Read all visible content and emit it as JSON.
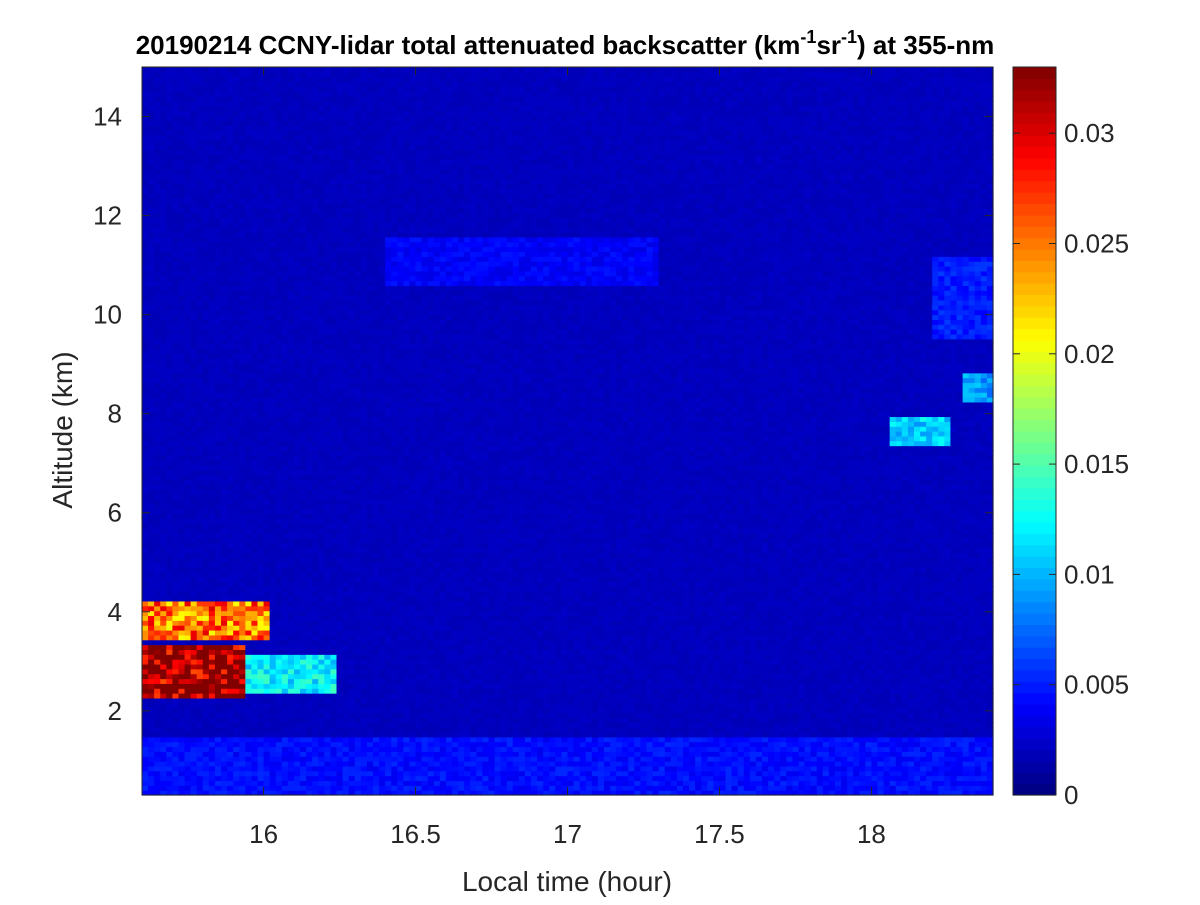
{
  "chart_data": {
    "type": "heatmap",
    "title": {
      "prefix": "20190214 CCNY-lidar total attenuated backscatter (km",
      "sup1": "-1",
      "mid": "sr",
      "sup2": "-1",
      "suffix": ") at 355-nm"
    },
    "xlabel": "Local time (hour)",
    "ylabel": "Altitude (km)",
    "xlim": [
      15.6,
      18.4
    ],
    "ylim": [
      0.3,
      15
    ],
    "xticks": [
      16,
      16.5,
      17,
      17.5,
      18
    ],
    "xtick_labels": [
      "16",
      "16.5",
      "17",
      "17.5",
      "18"
    ],
    "yticks": [
      2,
      4,
      6,
      8,
      10,
      12,
      14
    ],
    "ytick_labels": [
      "2",
      "4",
      "6",
      "8",
      "10",
      "12",
      "14"
    ],
    "colorbar": {
      "colormap": "jet",
      "range": [
        0,
        0.033
      ],
      "ticks": [
        0,
        0.005,
        0.01,
        0.015,
        0.02,
        0.025,
        0.03
      ],
      "tick_labels": [
        "0",
        "0.005",
        "0.01",
        "0.015",
        "0.02",
        "0.025",
        "0.03"
      ]
    },
    "background_level": 0.002,
    "features": [
      {
        "name": "low cloud core",
        "time": [
          15.6,
          15.93
        ],
        "altitude": [
          2.3,
          3.3
        ],
        "value": 0.033
      },
      {
        "name": "low cloud upper layer",
        "time": [
          15.6,
          16.02
        ],
        "altitude": [
          3.4,
          4.2
        ],
        "value": 0.025
      },
      {
        "name": "low cloud edge",
        "time": [
          15.93,
          16.23
        ],
        "altitude": [
          2.4,
          3.1
        ],
        "value": 0.012
      },
      {
        "name": "cirrus layer",
        "time": [
          16.4,
          17.3
        ],
        "altitude": [
          10.6,
          11.6
        ],
        "value": 0.004
      },
      {
        "name": "cloud near 7.7 km",
        "time": [
          18.06,
          18.26
        ],
        "altitude": [
          7.4,
          7.9
        ],
        "value": 0.011
      },
      {
        "name": "cloud near 8.5 km",
        "time": [
          18.3,
          18.4
        ],
        "altitude": [
          8.2,
          8.8
        ],
        "value": 0.009
      },
      {
        "name": "high cloud 18 h",
        "time": [
          18.2,
          18.4
        ],
        "altitude": [
          9.5,
          11.2
        ],
        "value": 0.005
      },
      {
        "name": "boundary layer",
        "time": [
          15.6,
          18.4
        ],
        "altitude": [
          0.3,
          1.5
        ],
        "value": 0.0045
      }
    ]
  }
}
